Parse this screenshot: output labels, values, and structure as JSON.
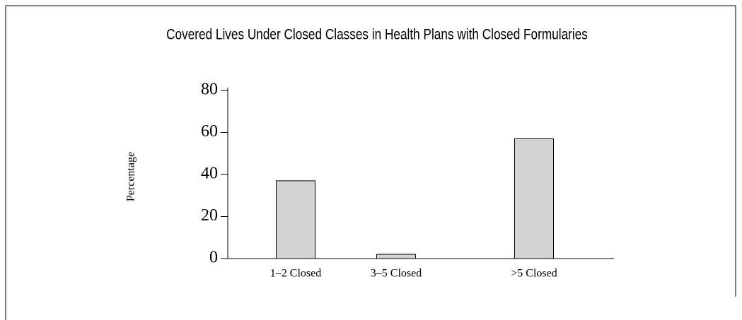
{
  "chart_data": {
    "type": "bar",
    "title": "Covered Lives Under Closed Classes in Health Plans with Closed Formularies",
    "y_label": "Percentage",
    "categories": [
      "1–2 Closed",
      "3–5 Closed",
      ">5 Closed"
    ],
    "values": [
      37,
      2,
      57
    ],
    "color": "#d3d3d3",
    "ylim": [
      0,
      80
    ],
    "yticks": [
      0,
      20,
      40,
      60,
      80
    ],
    "grid": false
  }
}
